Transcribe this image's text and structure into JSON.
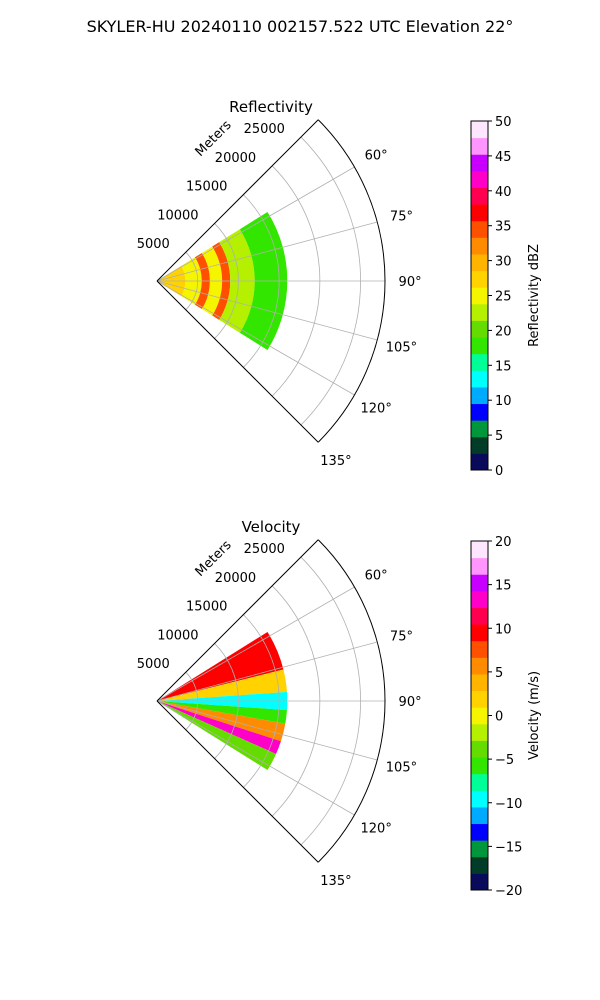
{
  "suptitle": "SKYLER-HU  20240110  002157.522 UTC Elevation 22°",
  "chart_data": [
    {
      "type": "heatmap",
      "subtype": "polar-sector",
      "title": "Reflectivity",
      "radial_label": "Meters",
      "radial_ticks": [
        "5000",
        "10000",
        "15000",
        "20000",
        "25000"
      ],
      "radial_tick_values": [
        5000,
        10000,
        15000,
        20000,
        25000
      ],
      "rlim": [
        0,
        28000
      ],
      "angle_ticks": [
        "60°",
        "75°",
        "90°",
        "105°",
        "120°",
        "135°"
      ],
      "angle_tick_values": [
        60,
        75,
        90,
        105,
        120,
        135
      ],
      "theta_range_deg": [
        45,
        135
      ],
      "data_theta_range_deg": [
        58,
        122
      ],
      "data_range_m": [
        0,
        16000
      ],
      "grid": true,
      "colorbar": {
        "label": "Reflectivity dBZ",
        "range": [
          0,
          50
        ],
        "ticks": [
          "0",
          "5",
          "10",
          "15",
          "20",
          "25",
          "30",
          "35",
          "40",
          "45",
          "50"
        ],
        "colors": [
          "#0a0a5a",
          "#003c28",
          "#00963c",
          "#0000ff",
          "#00aaff",
          "#00ffff",
          "#00ff96",
          "#32e600",
          "#64dc00",
          "#b4f000",
          "#f5f500",
          "#ffd200",
          "#ffb400",
          "#ff8c00",
          "#ff5000",
          "#ff0000",
          "#ff0050",
          "#ff00c8",
          "#c800ff",
          "#ff96ff",
          "#ffe6ff"
        ]
      },
      "bands": [
        {
          "r": [
            0,
            3500
          ],
          "value": 27
        },
        {
          "r": [
            3500,
            5500
          ],
          "value": 24
        },
        {
          "r": [
            5500,
            6500
          ],
          "value": 34
        },
        {
          "r": [
            6500,
            8000
          ],
          "value": 25
        },
        {
          "r": [
            8000,
            9000
          ],
          "value": 35
        },
        {
          "r": [
            9000,
            12000
          ],
          "value": 22
        },
        {
          "r": [
            12000,
            16000
          ],
          "value": 17
        }
      ]
    },
    {
      "type": "heatmap",
      "subtype": "polar-sector",
      "title": "Velocity",
      "radial_label": "Meters",
      "radial_ticks": [
        "5000",
        "10000",
        "15000",
        "20000",
        "25000"
      ],
      "radial_tick_values": [
        5000,
        10000,
        15000,
        20000,
        25000
      ],
      "rlim": [
        0,
        28000
      ],
      "angle_ticks": [
        "60°",
        "75°",
        "90°",
        "105°",
        "120°",
        "135°"
      ],
      "angle_tick_values": [
        60,
        75,
        90,
        105,
        120,
        135
      ],
      "theta_range_deg": [
        45,
        135
      ],
      "data_theta_range_deg": [
        58,
        122
      ],
      "data_range_m": [
        0,
        16000
      ],
      "grid": true,
      "colorbar": {
        "label": "Velocity (m/s)",
        "range": [
          -20,
          20
        ],
        "ticks": [
          "−20",
          "−15",
          "−10",
          "−5",
          "0",
          "5",
          "10",
          "15",
          "20"
        ],
        "colors": [
          "#0a0a5a",
          "#003c28",
          "#00963c",
          "#0000ff",
          "#00aaff",
          "#00ffff",
          "#00ff96",
          "#32e600",
          "#64dc00",
          "#b4f000",
          "#f5f500",
          "#ffd200",
          "#ffb400",
          "#ff8c00",
          "#ff5000",
          "#ff0000",
          "#ff0050",
          "#ff00c8",
          "#c800ff",
          "#ff96ff",
          "#ffe6ff"
        ]
      },
      "sectors": [
        {
          "theta": [
            58,
            76
          ],
          "value": 10
        },
        {
          "theta": [
            76,
            86
          ],
          "value": 2
        },
        {
          "theta": [
            86,
            94
          ],
          "value": -10
        },
        {
          "theta": [
            94,
            100
          ],
          "value": -6
        },
        {
          "theta": [
            100,
            108
          ],
          "value": 6
        },
        {
          "theta": [
            108,
            114
          ],
          "value": 14
        },
        {
          "theta": [
            114,
            122
          ],
          "value": -3
        }
      ]
    }
  ]
}
